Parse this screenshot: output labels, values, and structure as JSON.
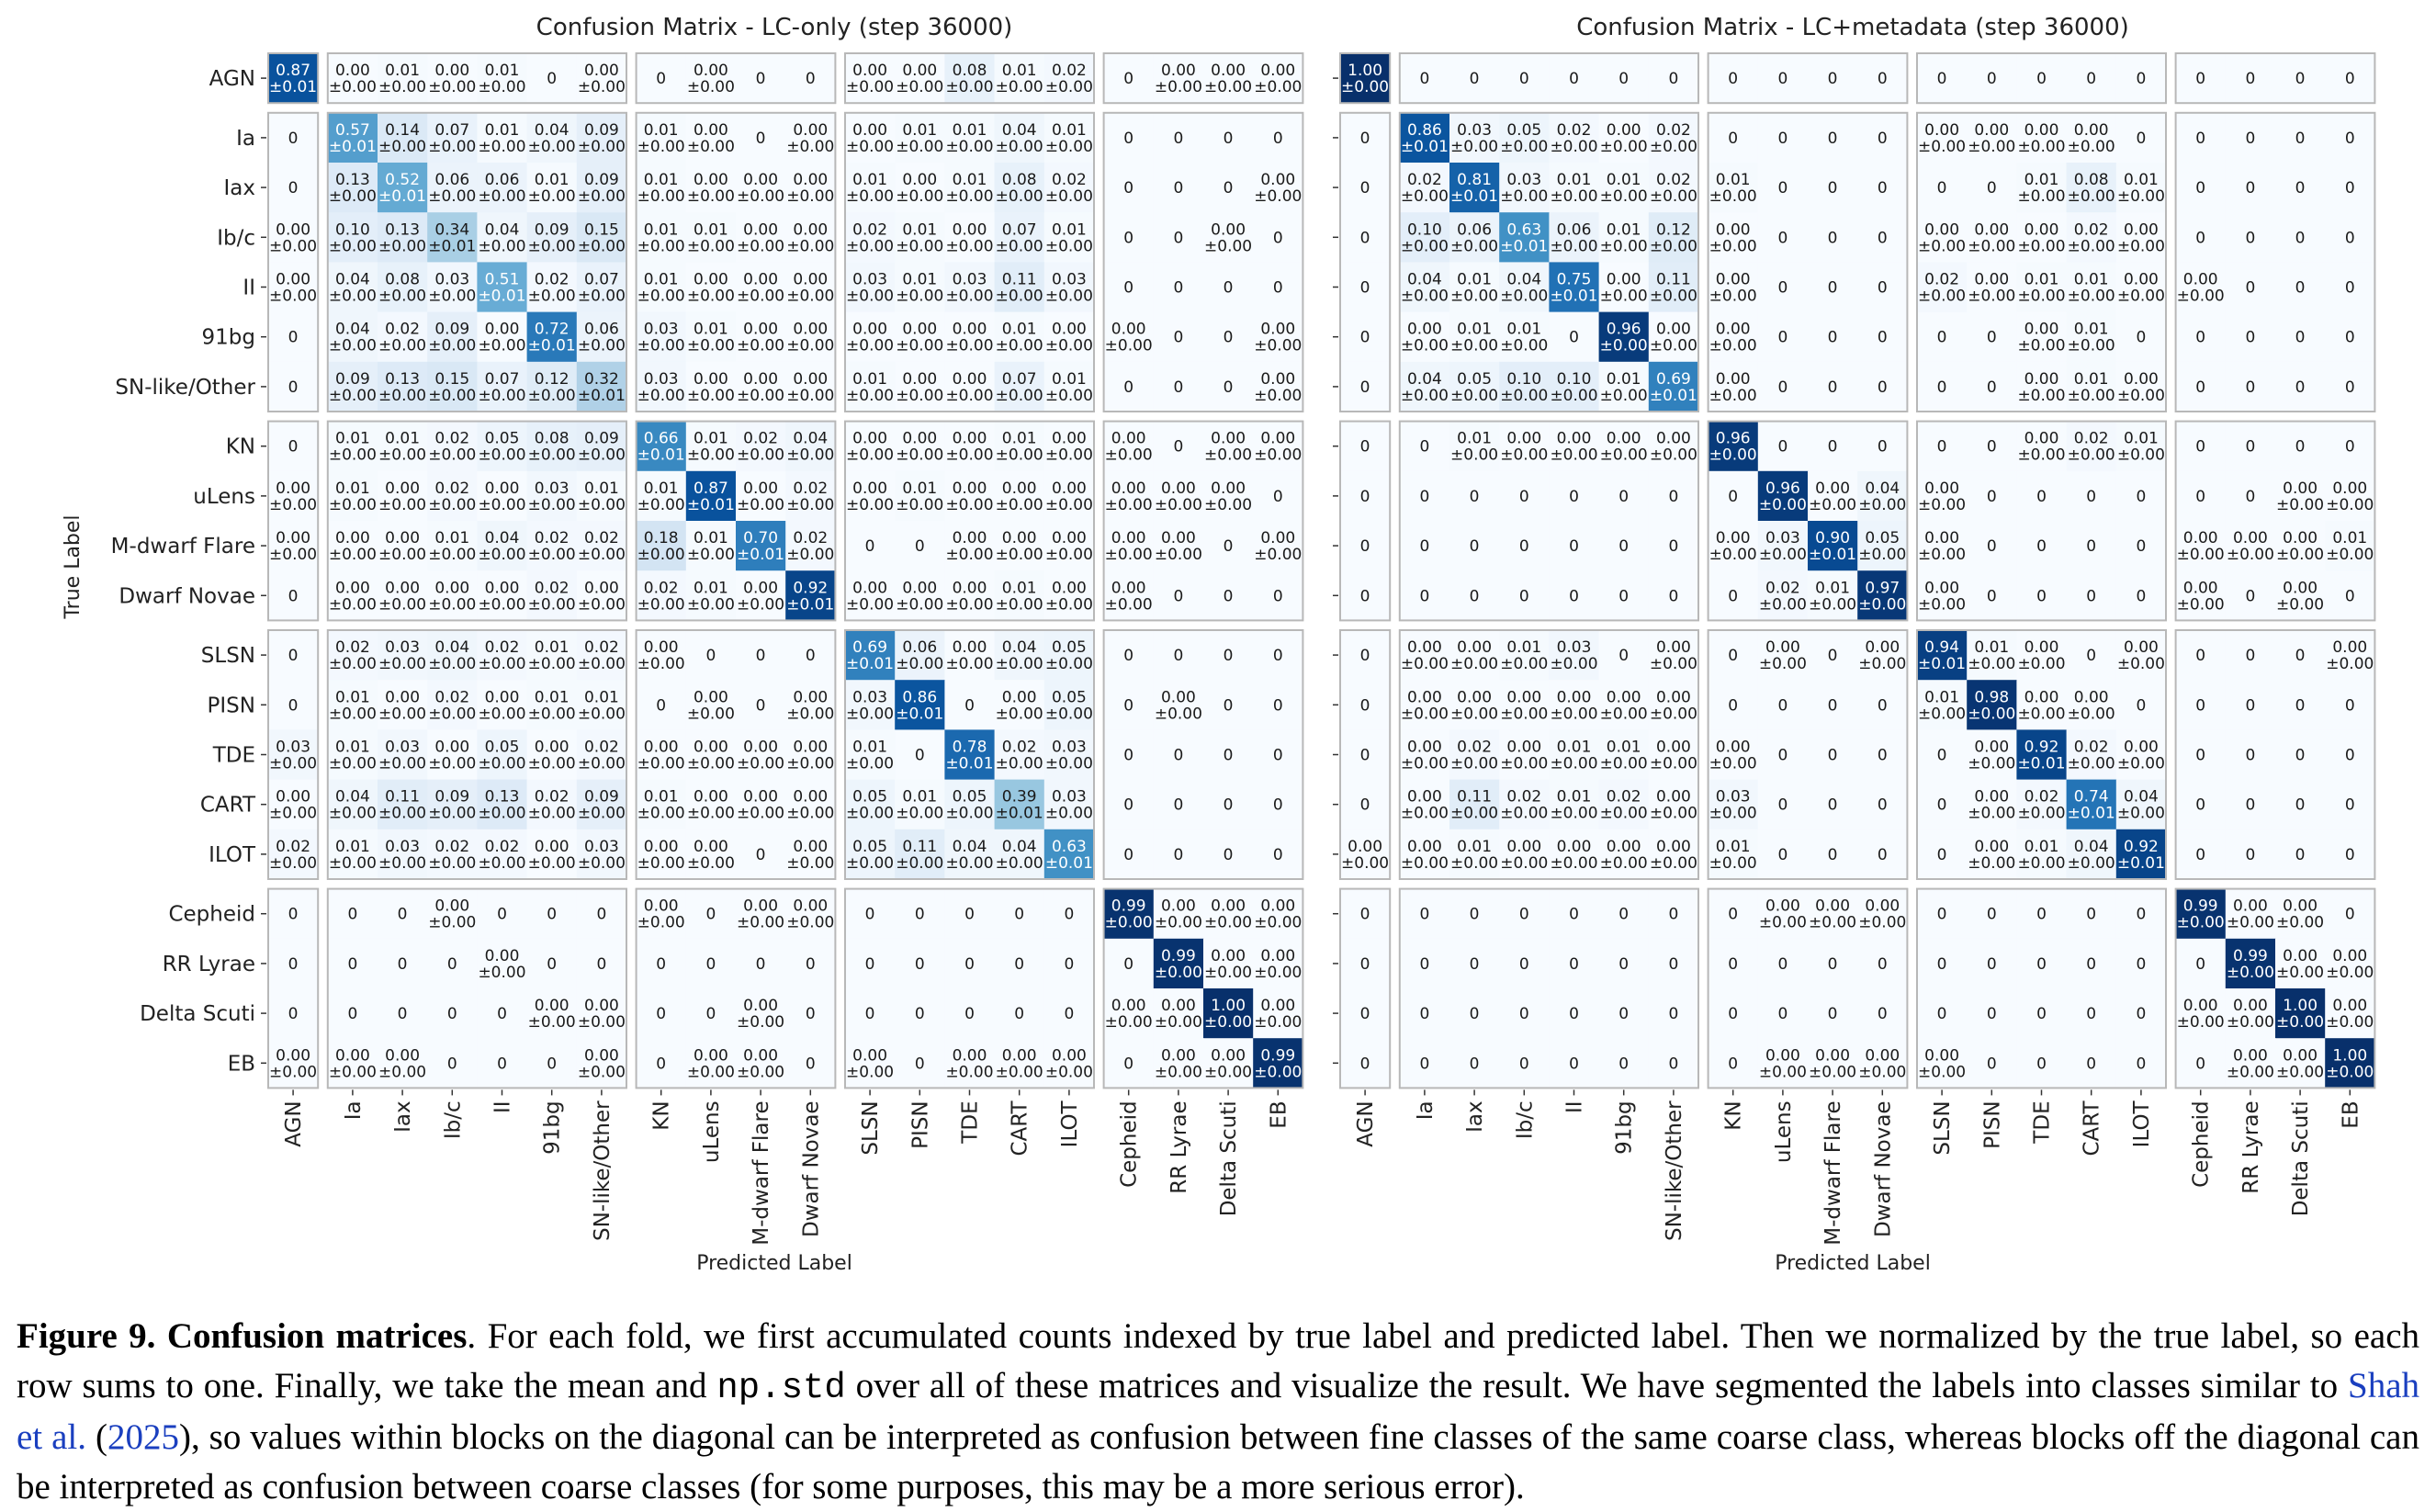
{
  "labels": [
    "AGN",
    "Ia",
    "Iax",
    "Ib/c",
    "II",
    "91bg",
    "SN-like/Other",
    "KN",
    "uLens",
    "M-dwarf Flare",
    "Dwarf Novae",
    "SLSN",
    "PISN",
    "TDE",
    "CART",
    "ILOT",
    "Cepheid",
    "RR Lyrae",
    "Delta Scuti",
    "EB"
  ],
  "chart_data": [
    {
      "type": "heatmap",
      "title": "Confusion Matrix - LC-only (step 36000)",
      "xlabel": "Predicted Label",
      "ylabel": "True Label",
      "rows": [
        [
          ".87",
          "0.00",
          "0.01",
          "0.00",
          "0.01",
          "0",
          "0.00",
          "0",
          "0.00",
          "0",
          "0",
          "0.00",
          "0.00",
          "0.08",
          "0.01",
          "0.02",
          "0",
          "0.00",
          "0.00",
          "0.00"
        ],
        [
          "0",
          ".57",
          "0.14",
          "0.07",
          "0.01",
          "0.04",
          "0.09",
          "0.01",
          "0.00",
          "0",
          "0.00",
          "0.00",
          "0.01",
          "0.01",
          "0.04",
          "0.01",
          "0",
          "0",
          "0",
          "0"
        ],
        [
          "0",
          "0.13",
          ".52",
          "0.06",
          "0.06",
          "0.01",
          "0.09",
          "0.01",
          "0.00",
          "0.00",
          "0.00",
          "0.01",
          "0.00",
          "0.01",
          "0.08",
          "0.02",
          "0",
          "0",
          "0",
          "0.00"
        ],
        [
          "0.00",
          "0.10",
          "0.13",
          ".34",
          "0.04",
          "0.09",
          "0.15",
          "0.01",
          "0.01",
          "0.00",
          "0.00",
          "0.02",
          "0.01",
          "0.00",
          "0.07",
          "0.01",
          "0",
          "0",
          "0.00",
          "0"
        ],
        [
          "0.00",
          "0.04",
          "0.08",
          "0.03",
          ".51",
          "0.02",
          "0.07",
          "0.01",
          "0.00",
          "0.00",
          "0.00",
          "0.03",
          "0.01",
          "0.03",
          "0.11",
          "0.03",
          "0",
          "0",
          "0",
          "0"
        ],
        [
          "0",
          "0.04",
          "0.02",
          "0.09",
          "0.00",
          ".72",
          "0.06",
          "0.03",
          "0.01",
          "0.00",
          "0.00",
          "0.00",
          "0.00",
          "0.00",
          "0.01",
          "0.00",
          "0.00",
          "0",
          "0",
          "0.00"
        ],
        [
          "0",
          "0.09",
          "0.13",
          "0.15",
          "0.07",
          "0.12",
          ".32",
          "0.03",
          "0.00",
          "0.00",
          "0.00",
          "0.01",
          "0.00",
          "0.00",
          "0.07",
          "0.01",
          "0",
          "0",
          "0",
          "0.00"
        ],
        [
          "0",
          "0.01",
          "0.01",
          "0.02",
          "0.05",
          "0.08",
          "0.09",
          ".66",
          "0.01",
          "0.02",
          "0.04",
          "0.00",
          "0.00",
          "0.00",
          "0.01",
          "0.00",
          "0.00",
          "0",
          "0.00",
          "0.00"
        ],
        [
          "0.00",
          "0.01",
          "0.00",
          "0.02",
          "0.00",
          "0.03",
          "0.01",
          "0.01",
          ".87",
          "0.00",
          "0.02",
          "0.00",
          "0.01",
          "0.00",
          "0.00",
          "0.00",
          "0.00",
          "0.00",
          "0.00",
          "0"
        ],
        [
          "0.00",
          "0.00",
          "0.00",
          "0.01",
          "0.04",
          "0.02",
          "0.02",
          "0.18",
          "0.01",
          ".70",
          "0.02",
          "0",
          "0",
          "0.00",
          "0.00",
          "0.00",
          "0.00",
          "0.00",
          "0",
          "0.00"
        ],
        [
          "0",
          "0.00",
          "0.00",
          "0.00",
          "0.00",
          "0.02",
          "0.00",
          "0.02",
          "0.01",
          "0.00",
          ".92",
          "0.00",
          "0.00",
          "0.00",
          "0.01",
          "0.00",
          "0.00",
          "0",
          "0",
          "0"
        ],
        [
          "0",
          "0.02",
          "0.03",
          "0.04",
          "0.02",
          "0.01",
          "0.02",
          "0.00",
          "0",
          "0",
          "0",
          ".69",
          "0.06",
          "0.00",
          "0.04",
          "0.05",
          "0",
          "0",
          "0",
          "0"
        ],
        [
          "0",
          "0.01",
          "0.00",
          "0.02",
          "0.00",
          "0.01",
          "0.01",
          "0",
          "0.00",
          "0",
          "0.00",
          "0.03",
          ".86",
          "0",
          "0.00",
          "0.05",
          "0",
          "0.00",
          "0",
          "0"
        ],
        [
          "0.03",
          "0.01",
          "0.03",
          "0.00",
          "0.05",
          "0.00",
          "0.02",
          "0.00",
          "0.00",
          "0.00",
          "0.00",
          "0.01",
          "0",
          ".78",
          "0.02",
          "0.03",
          "0",
          "0",
          "0",
          "0"
        ],
        [
          "0.00",
          "0.04",
          "0.11",
          "0.09",
          "0.13",
          "0.02",
          "0.09",
          "0.01",
          "0.00",
          "0.00",
          "0.00",
          "0.05",
          "0.01",
          "0.05",
          ".39",
          "0.03",
          "0",
          "0",
          "0",
          "0"
        ],
        [
          "0.02",
          "0.01",
          "0.03",
          "0.02",
          "0.02",
          "0.00",
          "0.03",
          "0.00",
          "0.00",
          "0",
          "0.00",
          "0.05",
          "0.11",
          "0.04",
          "0.04",
          ".63",
          "0",
          "0",
          "0",
          "0"
        ],
        [
          "0",
          "0",
          "0",
          "0.00",
          "0",
          "0",
          "0",
          "0.00",
          "0",
          "0.00",
          "0.00",
          "0",
          "0",
          "0",
          "0",
          "0",
          ".99",
          "0.00",
          "0.00",
          "0.00"
        ],
        [
          "0",
          "0",
          "0",
          "0",
          "0.00",
          "0",
          "0",
          "0",
          "0",
          "0",
          "0",
          "0",
          "0",
          "0",
          "0",
          "0",
          "0",
          ".99",
          "0.00",
          "0.00"
        ],
        [
          "0",
          "0",
          "0",
          "0",
          "0",
          "0.00",
          "0.00",
          "0",
          "0",
          "0.00",
          "0",
          "0",
          "0",
          "0",
          "0",
          "0",
          "0.00",
          "0.00",
          "1.00",
          "0.00"
        ],
        [
          "0.00",
          "0.00",
          "0.00",
          "0",
          "0",
          "0",
          "0.00",
          "0",
          "0.00",
          "0.00",
          "0",
          "0.00",
          "0",
          "0.00",
          "0.00",
          "0.00",
          "0",
          "0.00",
          "0.00",
          ".99"
        ]
      ]
    },
    {
      "type": "heatmap",
      "title": "Confusion Matrix - LC+metadata (step 36000)",
      "xlabel": "Predicted Label",
      "ylabel": "",
      "rows": [
        [
          "1.00",
          "0",
          "0",
          "0",
          "0",
          "0",
          "0",
          "0",
          "0",
          "0",
          "0",
          "0",
          "0",
          "0",
          "0",
          "0",
          "0",
          "0",
          "0",
          "0"
        ],
        [
          "0",
          ".86",
          "0.03",
          "0.05",
          "0.02",
          "0.00",
          "0.02",
          "0",
          "0",
          "0",
          "0",
          "0.00",
          "0.00",
          "0.00",
          "0.00",
          "0",
          "0",
          "0",
          "0",
          "0"
        ],
        [
          "0",
          "0.02",
          ".81",
          "0.03",
          "0.01",
          "0.01",
          "0.02",
          "0.01",
          "0",
          "0",
          "0",
          "0",
          "0",
          "0.01",
          "0.08",
          "0.01",
          "0",
          "0",
          "0",
          "0"
        ],
        [
          "0",
          "0.10",
          "0.06",
          ".63",
          "0.06",
          "0.01",
          "0.12",
          "0.00",
          "0",
          "0",
          "0",
          "0.00",
          "0.00",
          "0.00",
          "0.02",
          "0.00",
          "0",
          "0",
          "0",
          "0"
        ],
        [
          "0",
          "0.04",
          "0.01",
          "0.04",
          ".75",
          "0.00",
          "0.11",
          "0.00",
          "0",
          "0",
          "0",
          "0.02",
          "0.00",
          "0.01",
          "0.01",
          "0.00",
          "0.00",
          "0",
          "0",
          "0"
        ],
        [
          "0",
          "0.00",
          "0.01",
          "0.01",
          "0",
          ".96",
          "0.00",
          "0.00",
          "0",
          "0",
          "0",
          "0",
          "0",
          "0.00",
          "0.01",
          "0",
          "0",
          "0",
          "0",
          "0"
        ],
        [
          "0",
          "0.04",
          "0.05",
          "0.10",
          "0.10",
          "0.01",
          ".69",
          "0.00",
          "0",
          "0",
          "0",
          "0",
          "0",
          "0.00",
          "0.01",
          "0.00",
          "0",
          "0",
          "0",
          "0"
        ],
        [
          "0",
          "0",
          "0.01",
          "0.00",
          "0.00",
          "0.00",
          "0.00",
          ".96",
          "0",
          "0",
          "0",
          "0",
          "0",
          "0.00",
          "0.02",
          "0.01",
          "0",
          "0",
          "0",
          "0"
        ],
        [
          "0",
          "0",
          "0",
          "0",
          "0",
          "0",
          "0",
          "0",
          ".96",
          "0.00",
          "0.04",
          "0.00",
          "0",
          "0",
          "0",
          "0",
          "0",
          "0",
          "0.00",
          "0.00"
        ],
        [
          "0",
          "0",
          "0",
          "0",
          "0",
          "0",
          "0",
          "0.00",
          "0.03",
          ".90",
          "0.05",
          "0.00",
          "0",
          "0",
          "0",
          "0",
          "0.00",
          "0.00",
          "0.00",
          "0.01"
        ],
        [
          "0",
          "0",
          "0",
          "0",
          "0",
          "0",
          "0",
          "0",
          "0.02",
          "0.01",
          ".97",
          "0.00",
          "0",
          "0",
          "0",
          "0",
          "0.00",
          "0",
          "0.00",
          "0"
        ],
        [
          "0",
          "0.00",
          "0.00",
          "0.01",
          "0.03",
          "0",
          "0.00",
          "0",
          "0.00",
          "0",
          "0.00",
          ".94",
          "0.01",
          "0.00",
          "0",
          "0.00",
          "0",
          "0",
          "0",
          "0.00"
        ],
        [
          "0",
          "0.00",
          "0.00",
          "0.00",
          "0.00",
          "0.00",
          "0.00",
          "0",
          "0",
          "0",
          "0",
          "0.01",
          ".98",
          "0.00",
          "0.00",
          "0",
          "0",
          "0",
          "0",
          "0"
        ],
        [
          "0",
          "0.00",
          "0.02",
          "0.00",
          "0.01",
          "0.01",
          "0.00",
          "0.00",
          "0",
          "0",
          "0",
          "0",
          "0.00",
          ".92",
          "0.02",
          "0.00",
          "0",
          "0",
          "0",
          "0"
        ],
        [
          "0",
          "0.00",
          "0.11",
          "0.02",
          "0.01",
          "0.02",
          "0.00",
          "0.03",
          "0",
          "0",
          "0",
          "0",
          "0.00",
          "0.02",
          ".74",
          "0.04",
          "0",
          "0",
          "0",
          "0"
        ],
        [
          "0.00",
          "0.00",
          "0.01",
          "0.00",
          "0.00",
          "0.00",
          "0.00",
          "0.01",
          "0",
          "0",
          "0",
          "0",
          "0.00",
          "0.01",
          "0.04",
          ".92",
          "0",
          "0",
          "0",
          "0"
        ],
        [
          "0",
          "0",
          "0",
          "0",
          "0",
          "0",
          "0",
          "0",
          "0.00",
          "0.00",
          "0.00",
          "0",
          "0",
          "0",
          "0",
          "0",
          ".99",
          "0.00",
          "0.00",
          "0"
        ],
        [
          "0",
          "0",
          "0",
          "0",
          "0",
          "0",
          "0",
          "0",
          "0",
          "0",
          "0",
          "0",
          "0",
          "0",
          "0",
          "0",
          "0",
          ".99",
          "0.00",
          "0.00"
        ],
        [
          "0",
          "0",
          "0",
          "0",
          "0",
          "0",
          "0",
          "0",
          "0",
          "0",
          "0",
          "0",
          "0",
          "0",
          "0",
          "0",
          "0.00",
          "0.00",
          "1.00",
          "0.00"
        ],
        [
          "0",
          "0",
          "0",
          "0",
          "0",
          "0",
          "0",
          "0",
          "0.00",
          "0.00",
          "0.00",
          "0.00",
          "0",
          "0",
          "0",
          "0",
          "0",
          "0.00",
          "0.00",
          "1.00"
        ]
      ]
    }
  ],
  "stds": [
    "±0.00",
    "±0.01"
  ],
  "caption": {
    "label": "Figure 9.",
    "title": "Confusion matrices",
    "text1": ". For each fold, we first accumulated counts indexed by true label and predicted label. Then we normalized by the true label, so each row sums to one. Finally, we take the mean and ",
    "code": "np.std",
    "text2": " over all of these matrices and visualize the result. We have segmented the labels into classes similar to ",
    "cite_author": "Shah et al.",
    "cite_open": " (",
    "cite_year": "2025",
    "text3": "), so values within blocks on the diagonal can be interpreted as confusion between fine classes of the same coarse class, whereas blocks off the diagonal can be interpreted as confusion between coarse classes (for some purposes, this may be a more serious error)."
  }
}
